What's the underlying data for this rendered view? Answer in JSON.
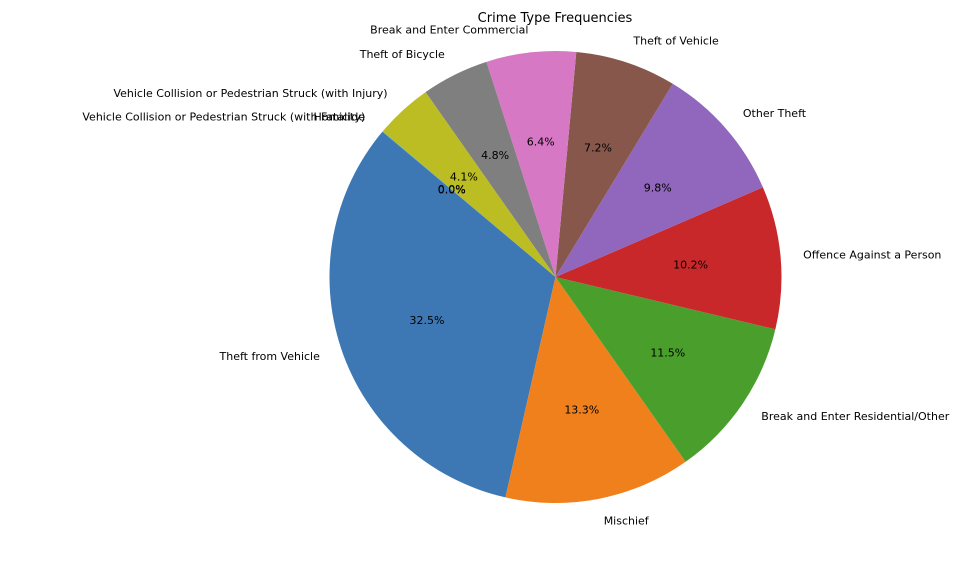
{
  "chart_data": {
    "type": "pie",
    "title": "Crime Type Frequencies",
    "start_angle_deg": 140,
    "direction": "counterclockwise",
    "slices": [
      {
        "label": "Theft from Vehicle",
        "value": 32.5,
        "pct_text": "32.5%",
        "color": "#3d78b5"
      },
      {
        "label": "Mischief",
        "value": 13.3,
        "pct_text": "13.3%",
        "color": "#f0801c"
      },
      {
        "label": "Break and Enter Residential/Other",
        "value": 11.5,
        "pct_text": "11.5%",
        "color": "#4a9f2c"
      },
      {
        "label": "Offence Against a Person",
        "value": 10.2,
        "pct_text": "10.2%",
        "color": "#c9282b"
      },
      {
        "label": "Other Theft",
        "value": 9.8,
        "pct_text": "9.8%",
        "color": "#9166bd"
      },
      {
        "label": "Theft of Vehicle",
        "value": 7.2,
        "pct_text": "7.2%",
        "color": "#87574c"
      },
      {
        "label": "Break and Enter Commercial",
        "value": 6.4,
        "pct_text": "6.4%",
        "color": "#d778c4"
      },
      {
        "label": "Theft of Bicycle",
        "value": 4.8,
        "pct_text": "4.8%",
        "color": "#7f7f7f"
      },
      {
        "label": "Vehicle Collision or Pedestrian Struck (with Injury)",
        "value": 4.1,
        "pct_text": "4.1%",
        "color": "#bcbd22"
      },
      {
        "label": "Vehicle Collision or Pedestrian Struck (with Fatality)",
        "value": 0.02,
        "pct_text": "0.0%",
        "color": "#1fb5c9"
      },
      {
        "label": "Homicide",
        "value": 0.01,
        "pct_text": "0.0%",
        "color": "#3d78b5"
      }
    ]
  }
}
